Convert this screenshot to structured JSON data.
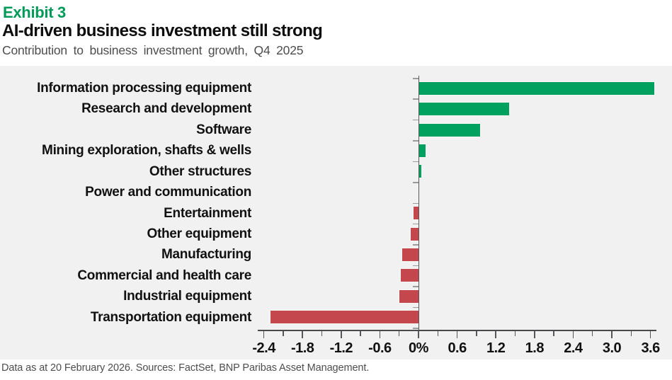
{
  "header": {
    "exhibit_label": "Exhibit 3",
    "title": "AI-driven business investment still strong",
    "subtitle": "Contribution to business investment growth, Q4 2025"
  },
  "footer": {
    "source_note": "Data as at 20 February 2026. Sources: FactSet, BNP Paribas Asset Management."
  },
  "colors": {
    "exhibit_green": "#009a58",
    "positive_bar": "#00a15e",
    "negative_bar": "#c4474e",
    "chart_background": "#f2f1f1",
    "axis_line": "#4a4a4c",
    "y_tick": "#9b9b9b"
  },
  "chart_data": {
    "type": "bar",
    "orientation": "horizontal",
    "title": "AI-driven business investment still strong",
    "subtitle": "Contribution to business investment growth, Q4 2025",
    "categories": [
      "Information processing equipment",
      "Research and development",
      "Software",
      "Mining exploration, shafts & wells",
      "Other structures",
      "Power and communication",
      "Entertainment",
      "Other equipment",
      "Manufacturing",
      "Commercial and health care",
      "Industrial equipment",
      "Transportation equipment"
    ],
    "values": [
      3.65,
      1.4,
      0.95,
      0.1,
      0.03,
      0.0,
      -0.08,
      -0.12,
      -0.25,
      -0.28,
      -0.3,
      -2.3
    ],
    "xlim": [
      -2.4,
      3.6
    ],
    "x_ticks": [
      {
        "label": "-2.4",
        "value": -2.4
      },
      {
        "label": "-1.8",
        "value": -1.8
      },
      {
        "label": "-1.2",
        "value": -1.2
      },
      {
        "label": "-0.6",
        "value": -0.6
      },
      {
        "label": "0%",
        "value": 0
      },
      {
        "label": "0.6",
        "value": 0.6
      },
      {
        "label": "1.2",
        "value": 1.2
      },
      {
        "label": "1.8",
        "value": 1.8
      },
      {
        "label": "2.4",
        "value": 2.4
      },
      {
        "label": "3.0",
        "value": 3.0
      },
      {
        "label": "3.6",
        "value": 3.6
      }
    ],
    "minor_tick_step": 0.3,
    "grid": false,
    "legend": "none",
    "positive_color": "#00a15e",
    "negative_color": "#c4474e"
  }
}
